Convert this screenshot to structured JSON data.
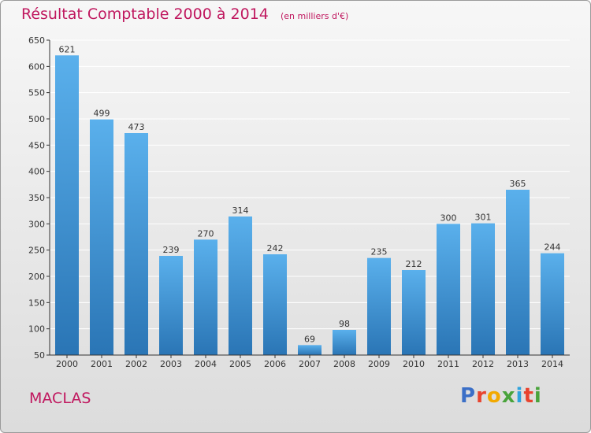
{
  "header": {
    "title": "Résultat Comptable 2000 à 2014",
    "subtitle": "(en milliers d'€)"
  },
  "footer": {
    "commune": "MACLAS",
    "logo": "Proxiti",
    "logo_colors": [
      "#3b6fc7",
      "#e8432e",
      "#f2a900",
      "#49a33b",
      "#2ea3dd",
      "#e8432e",
      "#49a33b"
    ]
  },
  "colors": {
    "bar_top": "#5ab0ec",
    "bar_bottom": "#2a75b5",
    "title": "#c0185f",
    "axis": "#333333",
    "grid": "#ffffff"
  },
  "chart_data": {
    "type": "bar",
    "title": "Résultat Comptable 2000 à 2014",
    "subtitle": "(en milliers d'€)",
    "categories": [
      "2000",
      "2001",
      "2002",
      "2003",
      "2004",
      "2005",
      "2006",
      "2007",
      "2008",
      "2009",
      "2010",
      "2011",
      "2012",
      "2013",
      "2014"
    ],
    "values": [
      621,
      499,
      473,
      239,
      270,
      314,
      242,
      69,
      98,
      235,
      212,
      300,
      301,
      365,
      244
    ],
    "data_labels": [
      "621",
      "499",
      "473",
      "239",
      "270",
      "314",
      "242",
      "69",
      "98",
      "235",
      "212",
      "300",
      "301",
      "365",
      "244"
    ],
    "ylim": [
      50,
      650
    ],
    "yticks": [
      50,
      100,
      150,
      200,
      250,
      300,
      350,
      400,
      450,
      500,
      550,
      600,
      650
    ],
    "ytick_labels": [
      "50",
      "100",
      "150",
      "200",
      "250",
      "300",
      "350",
      "400",
      "450",
      "500",
      "550",
      "600",
      "650"
    ],
    "grid": true,
    "xlabel": "",
    "ylabel": ""
  }
}
